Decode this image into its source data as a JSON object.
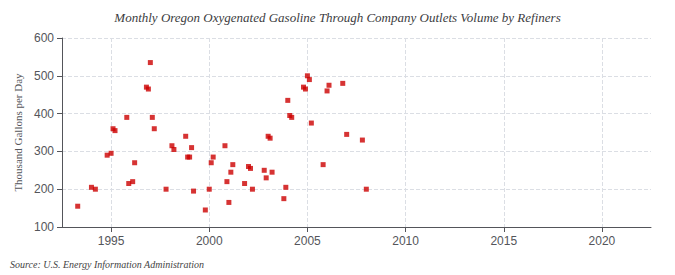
{
  "chart_data": {
    "type": "scatter",
    "title": "Monthly Oregon Oxygenated Gasoline Through Company Outlets Volume by Refiners",
    "ylabel": "Thousand Gallons per Day",
    "annotation": "Source: U.S. Energy Information Administration",
    "color": "#cc0000",
    "marker": "square",
    "x": [
      1993.3,
      1994.0,
      1994.2,
      1994.8,
      1995.0,
      1995.1,
      1995.2,
      1995.8,
      1995.9,
      1996.1,
      1996.2,
      1996.8,
      1996.9,
      1997.0,
      1997.1,
      1997.2,
      1997.8,
      1998.1,
      1998.2,
      1998.8,
      1998.9,
      1999.0,
      1999.1,
      1999.2,
      1999.8,
      2000.0,
      2000.1,
      2000.2,
      2000.8,
      2000.9,
      2001.0,
      2001.1,
      2001.2,
      2001.8,
      2002.0,
      2002.1,
      2002.2,
      2002.8,
      2002.9,
      2003.0,
      2003.1,
      2003.2,
      2003.8,
      2003.9,
      2004.0,
      2004.1,
      2004.2,
      2004.8,
      2004.9,
      2005.0,
      2005.1,
      2005.2,
      2005.8,
      2006.0,
      2006.1,
      2006.8,
      2007.0,
      2007.8,
      2008.0
    ],
    "values": [
      155,
      205,
      200,
      290,
      295,
      360,
      355,
      390,
      215,
      220,
      270,
      470,
      465,
      535,
      390,
      360,
      200,
      315,
      305,
      340,
      285,
      285,
      310,
      195,
      145,
      200,
      270,
      285,
      315,
      220,
      165,
      245,
      265,
      215,
      260,
      255,
      200,
      250,
      230,
      340,
      335,
      245,
      175,
      205,
      435,
      395,
      390,
      470,
      465,
      500,
      490,
      375,
      265,
      460,
      475,
      480,
      345,
      330,
      200
    ],
    "xlim": [
      1992.5,
      2022.5
    ],
    "ylim": [
      100,
      600
    ],
    "xticks": [
      1995,
      2000,
      2005,
      2010,
      2015,
      2020
    ],
    "yticks": [
      100,
      200,
      300,
      400,
      500,
      600
    ],
    "grid": true
  }
}
